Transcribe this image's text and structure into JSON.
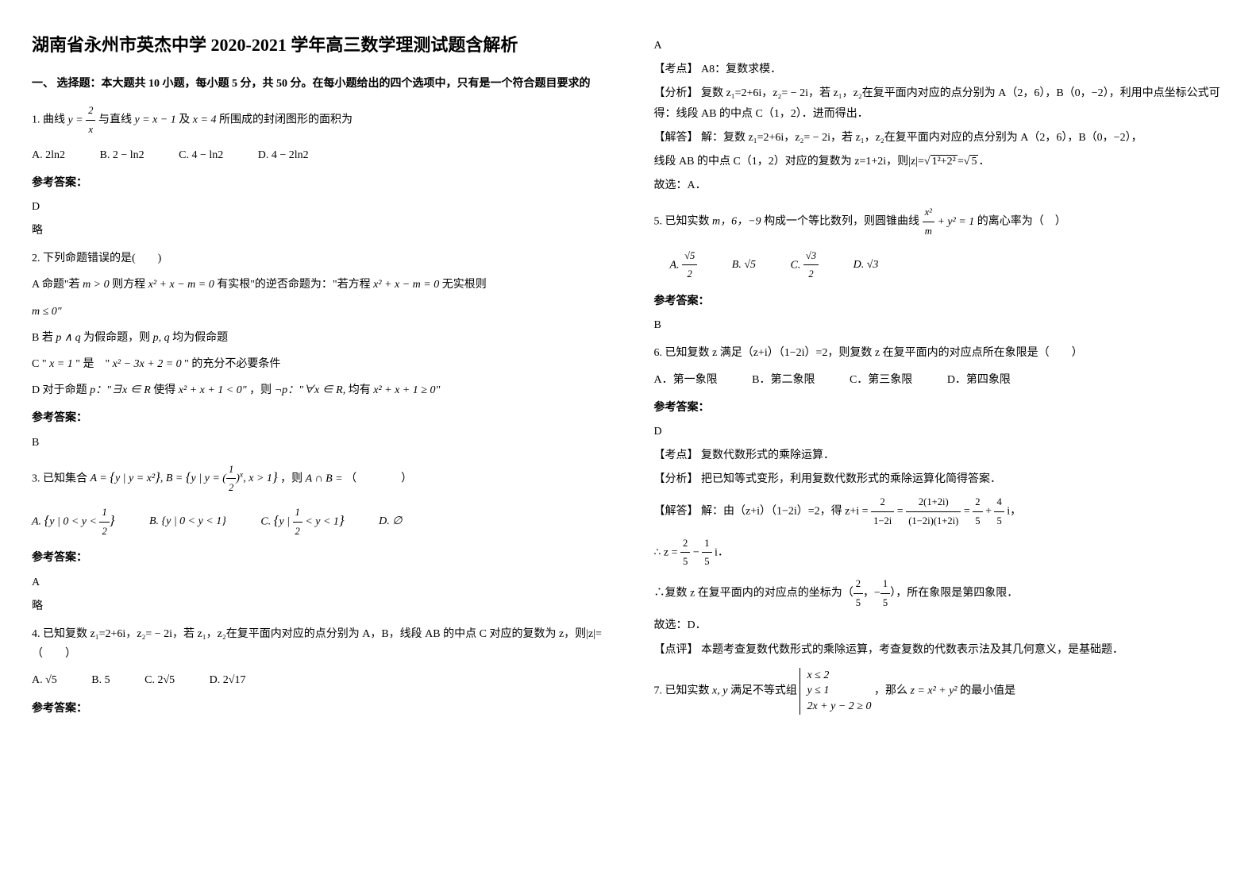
{
  "title": "湖南省永州市英杰中学 2020-2021 学年高三数学理测试题含解析",
  "section1_header": "一、 选择题：本大题共 10 小题，每小题 5 分，共 50 分。在每小题给出的四个选项中，只有是一个符合题目要求的",
  "q1": {
    "stem_prefix": "1. 曲线",
    "formula1": "y = 2/x",
    "mid1": "与直线",
    "formula2": "y = x − 1",
    "mid2": "及",
    "formula3": "x = 4",
    "suffix": "所围成的封闭图形的面积为",
    "opt_a": "A. 2ln2",
    "opt_b": "B. 2 − ln2",
    "opt_c": "C. 4 − ln2",
    "opt_d": "D. 4 − 2ln2",
    "answer_label": "参考答案：",
    "answer": "D",
    "note": "略"
  },
  "q2": {
    "stem": "2. 下列命题错误的是(　　)",
    "opt_a_prefix": "A 命题\"若",
    "opt_a_f1": "m > 0",
    "opt_a_mid1": "则方程",
    "opt_a_f2": "x² + x − m = 0",
    "opt_a_mid2": "有实根\"的逆否命题为：\"若方程",
    "opt_a_f3": "x² + x − m = 0",
    "opt_a_suffix": "无实根则",
    "opt_a_line2": "m ≤ 0\"",
    "opt_b_prefix": "B 若",
    "opt_b_f1": "p ∧ q",
    "opt_b_mid": "为假命题，则",
    "opt_b_f2": "p, q",
    "opt_b_suffix": "均为假命题",
    "opt_c_prefix": "C \"",
    "opt_c_f1": "x = 1",
    "opt_c_mid": "\" 是　\"",
    "opt_c_f2": "x² − 3x + 2 = 0",
    "opt_c_suffix": "\" 的充分不必要条件",
    "opt_d_prefix": "D 对于命题",
    "opt_d_f1": "p：\"∃x ∈ R",
    "opt_d_mid1": "使得",
    "opt_d_f2": "x² + x + 1 < 0\"",
    "opt_d_mid2": "，则",
    "opt_d_f3": "¬p：\"∀x ∈ R,",
    "opt_d_mid3": "均有",
    "opt_d_f4": "x² + x + 1 ≥ 0\"",
    "answer_label": "参考答案：",
    "answer": "B"
  },
  "q3": {
    "stem_prefix": "3. 已知集合",
    "formula_a": "A = {y | y = x²}, B = {y | y = (½)ˣ, x > 1}",
    "mid": "，则",
    "formula_ab": "A ∩ B =",
    "tail": "（　　　　）",
    "opt_a": "A. {y | 0 < y < ½}",
    "opt_b": "B. {y | 0 < y < 1}",
    "opt_c": "C. {y | ½ < y < 1}",
    "opt_d": "D. ∅",
    "answer_label": "参考答案：",
    "answer": "A",
    "note": "略"
  },
  "q4": {
    "stem": "4. 已知复数 z₁=2+6i，z₂= − 2i，若 z₁，z₂在复平面内对应的点分别为 A，B，线段 AB 的中点 C 对应的复数为 z，则|z|=（　　）",
    "opt_a": "A. √5",
    "opt_b": "B. 5",
    "opt_c": "C. 2√5",
    "opt_d": "D. 2√17",
    "answer_label": "参考答案：",
    "answer": "A",
    "analysis_kp_label": "【考点】",
    "analysis_kp": "A8：复数求模．",
    "analysis_fx_label": "【分析】",
    "analysis_fx": "复数 z₁=2+6i，z₂= − 2i，若 z₁，z₂在复平面内对应的点分别为 A（2，6），B（0，−2），利用中点坐标公式可得：线段 AB 的中点 C（1，2）．进而得出．",
    "analysis_jd_label": "【解答】",
    "analysis_jd_l1": "解：复数 z₁=2+6i，z₂= − 2i，若 z₁，z₂在复平面内对应的点分别为 A（2，6），B（0，−2），",
    "analysis_jd_l2": "线段 AB 的中点 C（1，2）对应的复数为 z=1+2i，则|z|=√(1²+2²)=√5．",
    "analysis_jd_l3": "故选：A．"
  },
  "q5": {
    "stem_prefix": "5. 已知实数",
    "f1": "m，6，−9",
    "mid1": "构成一个等比数列，则圆锥曲线",
    "f2": "x²/m + y² = 1",
    "suffix": "的离心率为（　）",
    "opt_a": "A. √5/2",
    "opt_b": "B. √5",
    "opt_c": "C. √3/2",
    "opt_d": "D. √3",
    "answer_label": "参考答案：",
    "answer": "B"
  },
  "q6": {
    "stem": "6. 已知复数 z 满足（z+i）（1−2i）=2，则复数 z 在复平面内的对应点所在象限是（　　）",
    "opt_a": "A．第一象限",
    "opt_b": "B．第二象限",
    "opt_c": "C．第三象限",
    "opt_d": "D．第四象限",
    "answer_label": "参考答案：",
    "answer": "D",
    "analysis_kp_label": "【考点】",
    "analysis_kp": "复数代数形式的乘除运算．",
    "analysis_fx_label": "【分析】",
    "analysis_fx": "把已知等式变形，利用复数代数形式的乘除运算化简得答案．",
    "analysis_jd_label": "【解答】",
    "analysis_jd_l1": "解：由（z+i）（1−2i）=2，得 z+i = 2/(1−2i) = 2(1+2i)/((1−2i)(1+2i)) = 2/5 + 4/5 i，",
    "analysis_jd_l2": "∴ z = 2/5 − 1/5 i．",
    "analysis_jd_l3": "∴复数 z 在复平面内的对应点的坐标为（2/5，−1/5），所在象限是第四象限．",
    "analysis_jd_l4": "故选：D．",
    "analysis_dp_label": "【点评】",
    "analysis_dp": "本题考查复数代数形式的乘除运算，考查复数的代数表示法及其几何意义，是基础题．"
  },
  "q7": {
    "stem_prefix": "7. 已知实数",
    "f1": "x, y",
    "mid1": "满足不等式组",
    "sys1": "x ≤ 2",
    "sys2": "y ≤ 1",
    "sys3": "2x + y − 2 ≥ 0",
    "mid2": "，那么",
    "f2": "z = x² + y²",
    "suffix": "的最小值是"
  },
  "colors": {
    "text": "#000000",
    "background": "#ffffff"
  }
}
